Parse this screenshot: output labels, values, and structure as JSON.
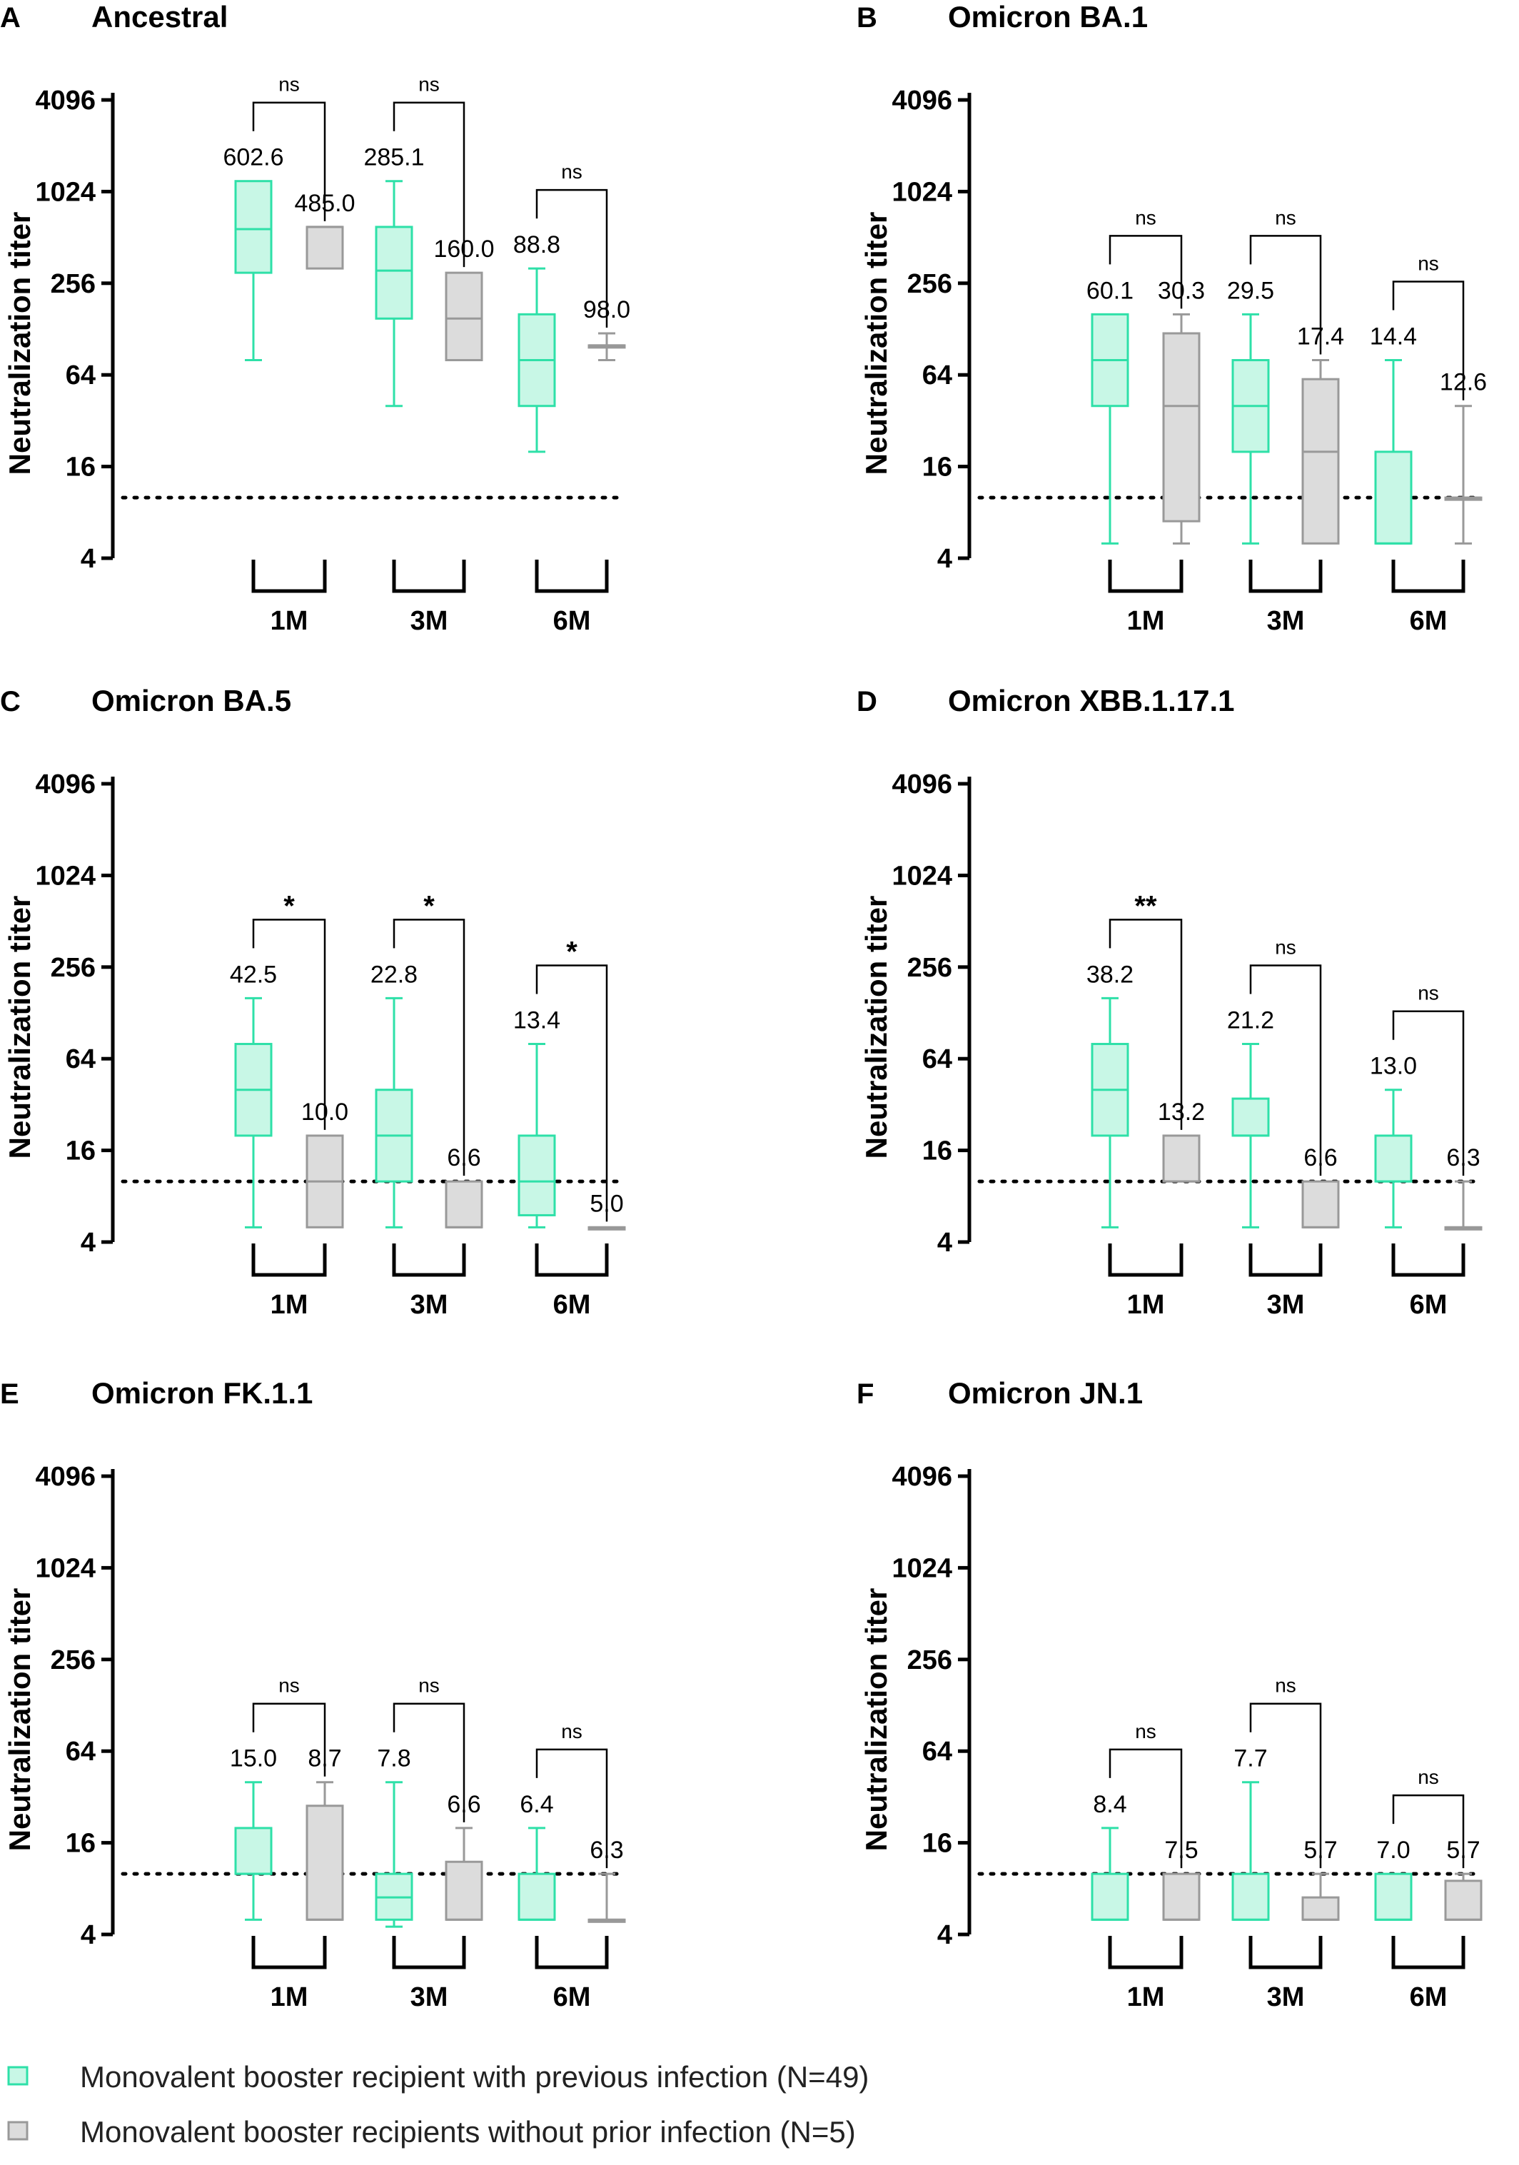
{
  "chart_data": [
    {
      "type": "box",
      "letter": "A",
      "title": "Ancestral",
      "ylabel": "Neutralization titer",
      "yscale": "log2",
      "ylim": [
        4,
        4096
      ],
      "yticks": [
        "4",
        "16",
        "64",
        "256",
        "1024",
        "4096"
      ],
      "detection_limit": 10,
      "categories": [
        "1M",
        "3M",
        "6M"
      ],
      "series": [
        {
          "name": "Monovalent booster recipient with previous infection (N=49)",
          "boxes": [
            {
              "min": 80,
              "q1": 300,
              "median": 580,
              "q3": 1200,
              "max": 1200,
              "gmt": "602.6"
            },
            {
              "min": 40,
              "q1": 150,
              "median": 310,
              "q3": 600,
              "max": 1200,
              "gmt": "285.1"
            },
            {
              "min": 20,
              "q1": 40,
              "median": 80,
              "q3": 160,
              "max": 320,
              "gmt": "88.8"
            }
          ]
        },
        {
          "name": "Monovalent booster recipients without prior infection (N=5)",
          "boxes": [
            {
              "min": 320,
              "q1": 320,
              "median": 600,
              "q3": 600,
              "max": 600,
              "gmt": "485.0"
            },
            {
              "min": 80,
              "q1": 80,
              "median": 150,
              "q3": 300,
              "max": 300,
              "gmt": "160.0"
            },
            {
              "min": 80,
              "q1": 100,
              "median": 100,
              "q3": 100,
              "max": 120,
              "gmt": "98.0"
            }
          ]
        }
      ],
      "significance": [
        "ns",
        "ns",
        "ns"
      ]
    },
    {
      "type": "box",
      "letter": "B",
      "title": "Omicron BA.1",
      "ylabel": "Neutralization titer",
      "yscale": "log2",
      "ylim": [
        4,
        4096
      ],
      "yticks": [
        "4",
        "16",
        "64",
        "256",
        "1024",
        "4096"
      ],
      "detection_limit": 10,
      "categories": [
        "1M",
        "3M",
        "6M"
      ],
      "series": [
        {
          "name": "Monovalent booster recipient with previous infection (N=49)",
          "boxes": [
            {
              "min": 5,
              "q1": 40,
              "median": 80,
              "q3": 160,
              "max": 160,
              "gmt": "60.1"
            },
            {
              "min": 5,
              "q1": 20,
              "median": 40,
              "q3": 80,
              "max": 160,
              "gmt": "29.5"
            },
            {
              "min": 5,
              "q1": 5,
              "median": 5,
              "q3": 20,
              "max": 80,
              "gmt": "14.4"
            }
          ]
        },
        {
          "name": "Monovalent booster recipients without prior infection (N=5)",
          "boxes": [
            {
              "min": 5,
              "q1": 7,
              "median": 40,
              "q3": 120,
              "max": 160,
              "gmt": "30.3"
            },
            {
              "min": 5,
              "q1": 5,
              "median": 20,
              "q3": 60,
              "max": 80,
              "gmt": "17.4"
            },
            {
              "min": 5,
              "q1": 10,
              "median": 10,
              "q3": 10,
              "max": 40,
              "gmt": "12.6"
            }
          ]
        }
      ],
      "significance": [
        "ns",
        "ns",
        "ns"
      ]
    },
    {
      "type": "box",
      "letter": "C",
      "title": "Omicron BA.5",
      "ylabel": "Neutralization titer",
      "yscale": "log2",
      "ylim": [
        4,
        4096
      ],
      "yticks": [
        "4",
        "16",
        "64",
        "256",
        "1024",
        "4096"
      ],
      "detection_limit": 10,
      "categories": [
        "1M",
        "3M",
        "6M"
      ],
      "series": [
        {
          "name": "Monovalent booster recipient with previous infection (N=49)",
          "boxes": [
            {
              "min": 5,
              "q1": 20,
              "median": 40,
              "q3": 80,
              "max": 160,
              "gmt": "42.5"
            },
            {
              "min": 5,
              "q1": 10,
              "median": 20,
              "q3": 40,
              "max": 160,
              "gmt": "22.8"
            },
            {
              "min": 5,
              "q1": 6,
              "median": 10,
              "q3": 20,
              "max": 80,
              "gmt": "13.4"
            }
          ]
        },
        {
          "name": "Monovalent booster recipients without prior infection (N=5)",
          "boxes": [
            {
              "min": 5,
              "q1": 5,
              "median": 10,
              "q3": 20,
              "max": 20,
              "gmt": "10.0"
            },
            {
              "min": 5,
              "q1": 5,
              "median": 5,
              "q3": 10,
              "max": 10,
              "gmt": "6.6"
            },
            {
              "min": 5,
              "q1": 5,
              "median": 5,
              "q3": 5,
              "max": 5,
              "gmt": "5.0"
            }
          ]
        }
      ],
      "significance": [
        "*",
        "*",
        "*"
      ]
    },
    {
      "type": "box",
      "letter": "D",
      "title": "Omicron XBB.1.17.1",
      "ylabel": "Neutralization titer",
      "yscale": "log2",
      "ylim": [
        4,
        4096
      ],
      "yticks": [
        "4",
        "16",
        "64",
        "256",
        "1024",
        "4096"
      ],
      "detection_limit": 10,
      "categories": [
        "1M",
        "3M",
        "6M"
      ],
      "series": [
        {
          "name": "Monovalent booster recipient with previous infection (N=49)",
          "boxes": [
            {
              "min": 5,
              "q1": 20,
              "median": 40,
              "q3": 80,
              "max": 160,
              "gmt": "38.2"
            },
            {
              "min": 5,
              "q1": 20,
              "median": 20,
              "q3": 35,
              "max": 80,
              "gmt": "21.2"
            },
            {
              "min": 5,
              "q1": 10,
              "median": 10,
              "q3": 20,
              "max": 40,
              "gmt": "13.0"
            }
          ]
        },
        {
          "name": "Monovalent booster recipients without prior infection (N=5)",
          "boxes": [
            {
              "min": 10,
              "q1": 10,
              "median": 10,
              "q3": 20,
              "max": 20,
              "gmt": "13.2"
            },
            {
              "min": 5,
              "q1": 5,
              "median": 5,
              "q3": 10,
              "max": 10,
              "gmt": "6.6"
            },
            {
              "min": 5,
              "q1": 5,
              "median": 5,
              "q3": 5,
              "max": 10,
              "gmt": "6.3"
            }
          ]
        }
      ],
      "significance": [
        "**",
        "ns",
        "ns"
      ]
    },
    {
      "type": "box",
      "letter": "E",
      "title": "Omicron FK.1.1",
      "ylabel": "Neutralization titer",
      "yscale": "log2",
      "ylim": [
        4,
        4096
      ],
      "yticks": [
        "4",
        "16",
        "64",
        "256",
        "1024",
        "4096"
      ],
      "detection_limit": 10,
      "categories": [
        "1M",
        "3M",
        "6M"
      ],
      "series": [
        {
          "name": "Monovalent booster recipient with previous infection (N=49)",
          "boxes": [
            {
              "min": 5,
              "q1": 10,
              "median": 10,
              "q3": 20,
              "max": 40,
              "gmt": "15.0"
            },
            {
              "min": 4.5,
              "q1": 5,
              "median": 7,
              "q3": 10,
              "max": 40,
              "gmt": "7.8"
            },
            {
              "min": 5,
              "q1": 5,
              "median": 5,
              "q3": 10,
              "max": 20,
              "gmt": "6.4"
            }
          ]
        },
        {
          "name": "Monovalent booster recipients without prior infection (N=5)",
          "boxes": [
            {
              "min": 5,
              "q1": 5,
              "median": 5,
              "q3": 28,
              "max": 40,
              "gmt": "8.7"
            },
            {
              "min": 5,
              "q1": 5,
              "median": 5,
              "q3": 12,
              "max": 20,
              "gmt": "6.6"
            },
            {
              "min": 5,
              "q1": 5,
              "median": 5,
              "q3": 5,
              "max": 10,
              "gmt": "6.3"
            }
          ]
        }
      ],
      "significance": [
        "ns",
        "ns",
        "ns"
      ]
    },
    {
      "type": "box",
      "letter": "F",
      "title": "Omicron JN.1",
      "ylabel": "Neutralization titer",
      "yscale": "log2",
      "ylim": [
        4,
        4096
      ],
      "yticks": [
        "4",
        "16",
        "64",
        "256",
        "1024",
        "4096"
      ],
      "detection_limit": 10,
      "categories": [
        "1M",
        "3M",
        "6M"
      ],
      "series": [
        {
          "name": "Monovalent booster recipient with previous infection (N=49)",
          "boxes": [
            {
              "min": 5,
              "q1": 5,
              "median": 5,
              "q3": 10,
              "max": 20,
              "gmt": "8.4"
            },
            {
              "min": 5,
              "q1": 5,
              "median": 5,
              "q3": 10,
              "max": 40,
              "gmt": "7.7"
            },
            {
              "min": 5,
              "q1": 5,
              "median": 5,
              "q3": 10,
              "max": 10,
              "gmt": "7.0"
            }
          ]
        },
        {
          "name": "Monovalent booster recipients without prior infection (N=5)",
          "boxes": [
            {
              "min": 5,
              "q1": 5,
              "median": 5,
              "q3": 10,
              "max": 10,
              "gmt": "7.5"
            },
            {
              "min": 5,
              "q1": 5,
              "median": 5,
              "q3": 7,
              "max": 10,
              "gmt": "5.7"
            },
            {
              "min": 5,
              "q1": 5,
              "median": 5,
              "q3": 9,
              "max": 10,
              "gmt": "5.7"
            }
          ]
        }
      ],
      "significance": [
        "ns",
        "ns",
        "ns"
      ]
    }
  ],
  "legend": {
    "position": "bottom-left",
    "items": [
      {
        "label": "Monovalent booster recipient with previous infection (N=49)",
        "fill": "#c8f7e6",
        "stroke": "#2ee0a8"
      },
      {
        "label": "Monovalent booster recipients without prior infection (N=5)",
        "fill": "#dcdcdc",
        "stroke": "#999999"
      }
    ]
  },
  "colors": {
    "infected_fill": "#c8f7e6",
    "infected_stroke": "#2ee0a8",
    "uninfected_fill": "#dcdcdc",
    "uninfected_stroke": "#999999",
    "axis": "#000000"
  }
}
